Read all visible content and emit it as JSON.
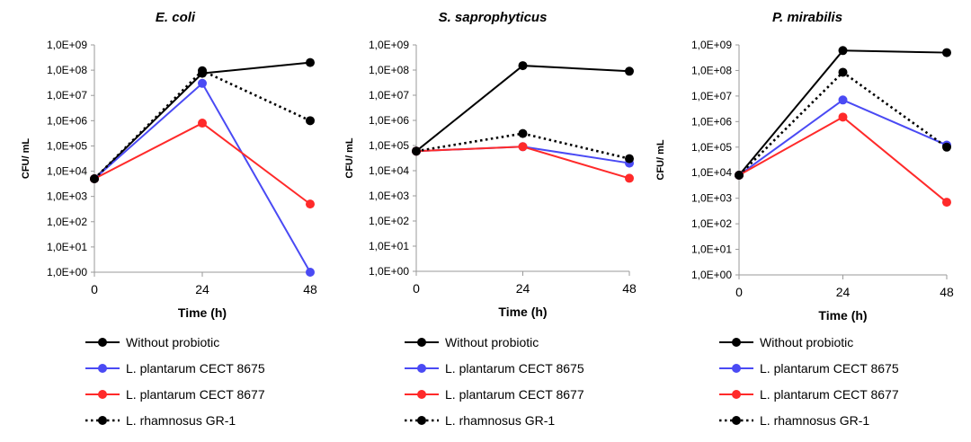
{
  "chart_data": [
    {
      "type": "line",
      "title": "E. coli",
      "xlabel": "Time (h)",
      "ylabel": "CFU/ mL",
      "yscale": "log",
      "ylim": [
        1,
        1000000000
      ],
      "yticks": [
        "1,0E+00",
        "1,0E+01",
        "1,0E+02",
        "1,0E+03",
        "1,0E+04",
        "1,0E+05",
        "1,0E+06",
        "1,0E+07",
        "1,0E+08",
        "1,0E+09"
      ],
      "x": [
        0,
        24,
        48
      ],
      "xticks": [
        "0",
        "24",
        "48"
      ],
      "grid": false,
      "legend": "bottom",
      "series": [
        {
          "name": "Without probiotic",
          "values": [
            5000,
            75000000,
            200000000
          ],
          "color": "#000000",
          "dash": false
        },
        {
          "name": "L. plantarum CECT 8675",
          "values": [
            5000,
            30000000,
            1
          ],
          "color": "#4a4af4",
          "dash": false
        },
        {
          "name": "L. plantarum CECT 8677",
          "values": [
            5000,
            800000,
            500
          ],
          "color": "#ff2a2a",
          "dash": false
        },
        {
          "name": "L. rhamnosus GR-1",
          "values": [
            5000,
            95000000,
            1000000
          ],
          "color": "#000000",
          "dash": true
        }
      ]
    },
    {
      "type": "line",
      "title": "S. saprophyticus",
      "xlabel": "Time (h)",
      "ylabel": "CFU/ mL",
      "yscale": "log",
      "ylim": [
        1,
        1000000000
      ],
      "yticks": [
        "1,0E+00",
        "1,0E+01",
        "1,0E+02",
        "1,0E+03",
        "1,0E+04",
        "1,0E+05",
        "1,0E+06",
        "1,0E+07",
        "1,0E+08",
        "1,0E+09"
      ],
      "x": [
        0,
        24,
        48
      ],
      "xticks": [
        "0",
        "24",
        "48"
      ],
      "grid": false,
      "legend": "bottom",
      "series": [
        {
          "name": "Without probiotic",
          "values": [
            60000,
            150000000,
            90000000
          ],
          "color": "#000000",
          "dash": false
        },
        {
          "name": "L. plantarum CECT 8675",
          "values": [
            60000,
            90000,
            20000
          ],
          "color": "#4a4af4",
          "dash": false
        },
        {
          "name": "L. plantarum CECT 8677",
          "values": [
            60000,
            90000,
            5000
          ],
          "color": "#ff2a2a",
          "dash": false
        },
        {
          "name": "L. rhamnosus GR-1",
          "values": [
            60000,
            300000,
            30000
          ],
          "color": "#000000",
          "dash": true
        }
      ]
    },
    {
      "type": "line",
      "title": "P. mirabilis",
      "xlabel": "Time (h)",
      "ylabel": "CFU/ mL",
      "yscale": "log",
      "ylim": [
        1,
        1000000000
      ],
      "yticks": [
        "1,0E+00",
        "1,0E+01",
        "1,0E+02",
        "1,0E+03",
        "1,0E+04",
        "1,0E+05",
        "1,0E+06",
        "1,0E+07",
        "1,0E+08",
        "1,0E+09"
      ],
      "x": [
        0,
        24,
        48
      ],
      "xticks": [
        "0",
        "24",
        "48"
      ],
      "grid": false,
      "legend": "bottom",
      "series": [
        {
          "name": "Without probiotic",
          "values": [
            8000,
            600000000,
            500000000
          ],
          "color": "#000000",
          "dash": false
        },
        {
          "name": "L. plantarum CECT 8675",
          "values": [
            8000,
            7000000,
            120000
          ],
          "color": "#4a4af4",
          "dash": false
        },
        {
          "name": "L. plantarum CECT 8677",
          "values": [
            8000,
            1500000,
            700
          ],
          "color": "#ff2a2a",
          "dash": false
        },
        {
          "name": "L. rhamnosus GR-1",
          "values": [
            8000,
            85000000,
            100000
          ],
          "color": "#000000",
          "dash": true
        }
      ]
    }
  ]
}
